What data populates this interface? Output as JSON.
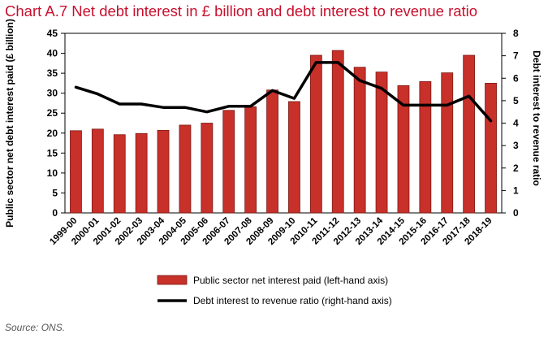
{
  "colors": {
    "title": "#c8102e",
    "bar": "#c8302a",
    "bar_edge": "#7a1a14",
    "line": "#000000"
  },
  "chart_data": {
    "type": "bar+line",
    "title": "Chart A.7 Net debt interest in £ billion and debt interest to revenue ratio",
    "categories": [
      "1999-00",
      "2000-01",
      "2001-02",
      "2002-03",
      "2003-04",
      "2004-05",
      "2005-06",
      "2006-07",
      "2007-08",
      "2008-09",
      "2009-10",
      "2010-11",
      "2011-12",
      "2012-13",
      "2013-14",
      "2014-15",
      "2015-16",
      "2016-17",
      "2017-18",
      "2018-19"
    ],
    "series": [
      {
        "name": "Public sector net interest paid (left-hand axis)",
        "type": "bar",
        "axis": "left",
        "values": [
          20.6,
          21.0,
          19.6,
          19.9,
          20.7,
          22.0,
          22.5,
          25.7,
          26.6,
          30.8,
          27.9,
          39.5,
          40.7,
          36.5,
          35.3,
          31.9,
          32.9,
          35.1,
          39.5,
          32.5
        ]
      },
      {
        "name": "Debt interest to revenue ratio (right-hand axis)",
        "type": "line",
        "axis": "right",
        "values": [
          5.6,
          5.3,
          4.85,
          4.85,
          4.7,
          4.7,
          4.5,
          4.75,
          4.75,
          5.45,
          5.1,
          6.7,
          6.7,
          5.9,
          5.55,
          4.8,
          4.8,
          4.8,
          5.2,
          4.1
        ]
      }
    ],
    "ylabel_left": "Public sector net debt interest paid (£ billion)",
    "ylabel_right": "Debt interest to revenue ratio",
    "ylim_left": [
      0,
      45
    ],
    "yticks_left": [
      "0",
      "5",
      "10",
      "15",
      "20",
      "25",
      "30",
      "35",
      "40",
      "45"
    ],
    "ylim_right": [
      0,
      8
    ],
    "yticks_right": [
      "0",
      "1",
      "2",
      "3",
      "4",
      "5",
      "6",
      "7",
      "8"
    ],
    "legend_position": "bottom-center",
    "grid": false
  },
  "source": "Source: ONS."
}
